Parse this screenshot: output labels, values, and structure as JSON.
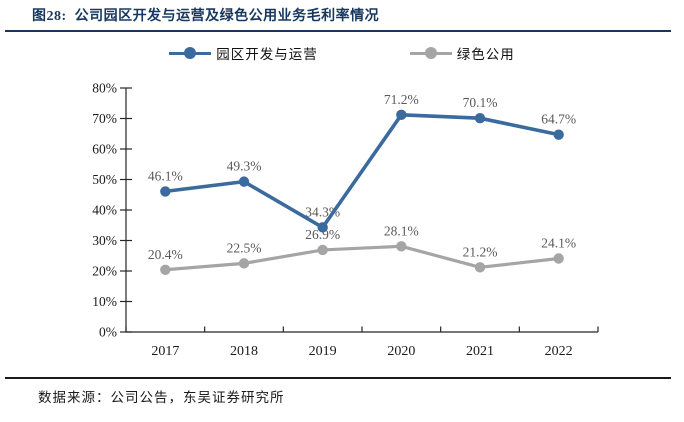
{
  "header": {
    "figure_label": "图28:",
    "title": "公司园区开发与运营及绿色公用业务毛利率情况"
  },
  "legend": {
    "items": [
      {
        "label": "园区开发与运营",
        "color": "#3A6A9E"
      },
      {
        "label": "绿色公用",
        "color": "#A5A5A5"
      }
    ]
  },
  "footer": {
    "source": "数据来源：公司公告，东吴证券研究所"
  },
  "colors": {
    "title_navy": "#17375E",
    "series_blue": "#3A6A9E",
    "series_gray": "#A5A5A5",
    "data_label": "#595959",
    "axis": "#262626",
    "tick_text": "#1a1a1a"
  },
  "chart_data": {
    "type": "line",
    "title": "公司园区开发与运营及绿色公用业务毛利率情况",
    "categories": [
      "2017",
      "2018",
      "2019",
      "2020",
      "2021",
      "2022"
    ],
    "series": [
      {
        "name": "园区开发与运营",
        "color": "#3A6A9E",
        "values": [
          46.1,
          49.3,
          34.3,
          71.2,
          70.1,
          64.7
        ],
        "labels": [
          "46.1%",
          "49.3%",
          "34.3%",
          "71.2%",
          "70.1%",
          "64.7%"
        ]
      },
      {
        "name": "绿色公用",
        "color": "#A5A5A5",
        "values": [
          20.4,
          22.5,
          26.9,
          28.1,
          21.2,
          24.1
        ],
        "labels": [
          "20.4%",
          "22.5%",
          "26.9%",
          "28.1%",
          "21.2%",
          "24.1%"
        ]
      }
    ],
    "xlabel": "",
    "ylabel": "",
    "ylim": [
      0,
      80
    ],
    "ytick_step": 10,
    "ytick_labels": [
      "0%",
      "10%",
      "20%",
      "30%",
      "40%",
      "50%",
      "60%",
      "70%",
      "80%"
    ],
    "grid": false,
    "legend_position": "top"
  }
}
